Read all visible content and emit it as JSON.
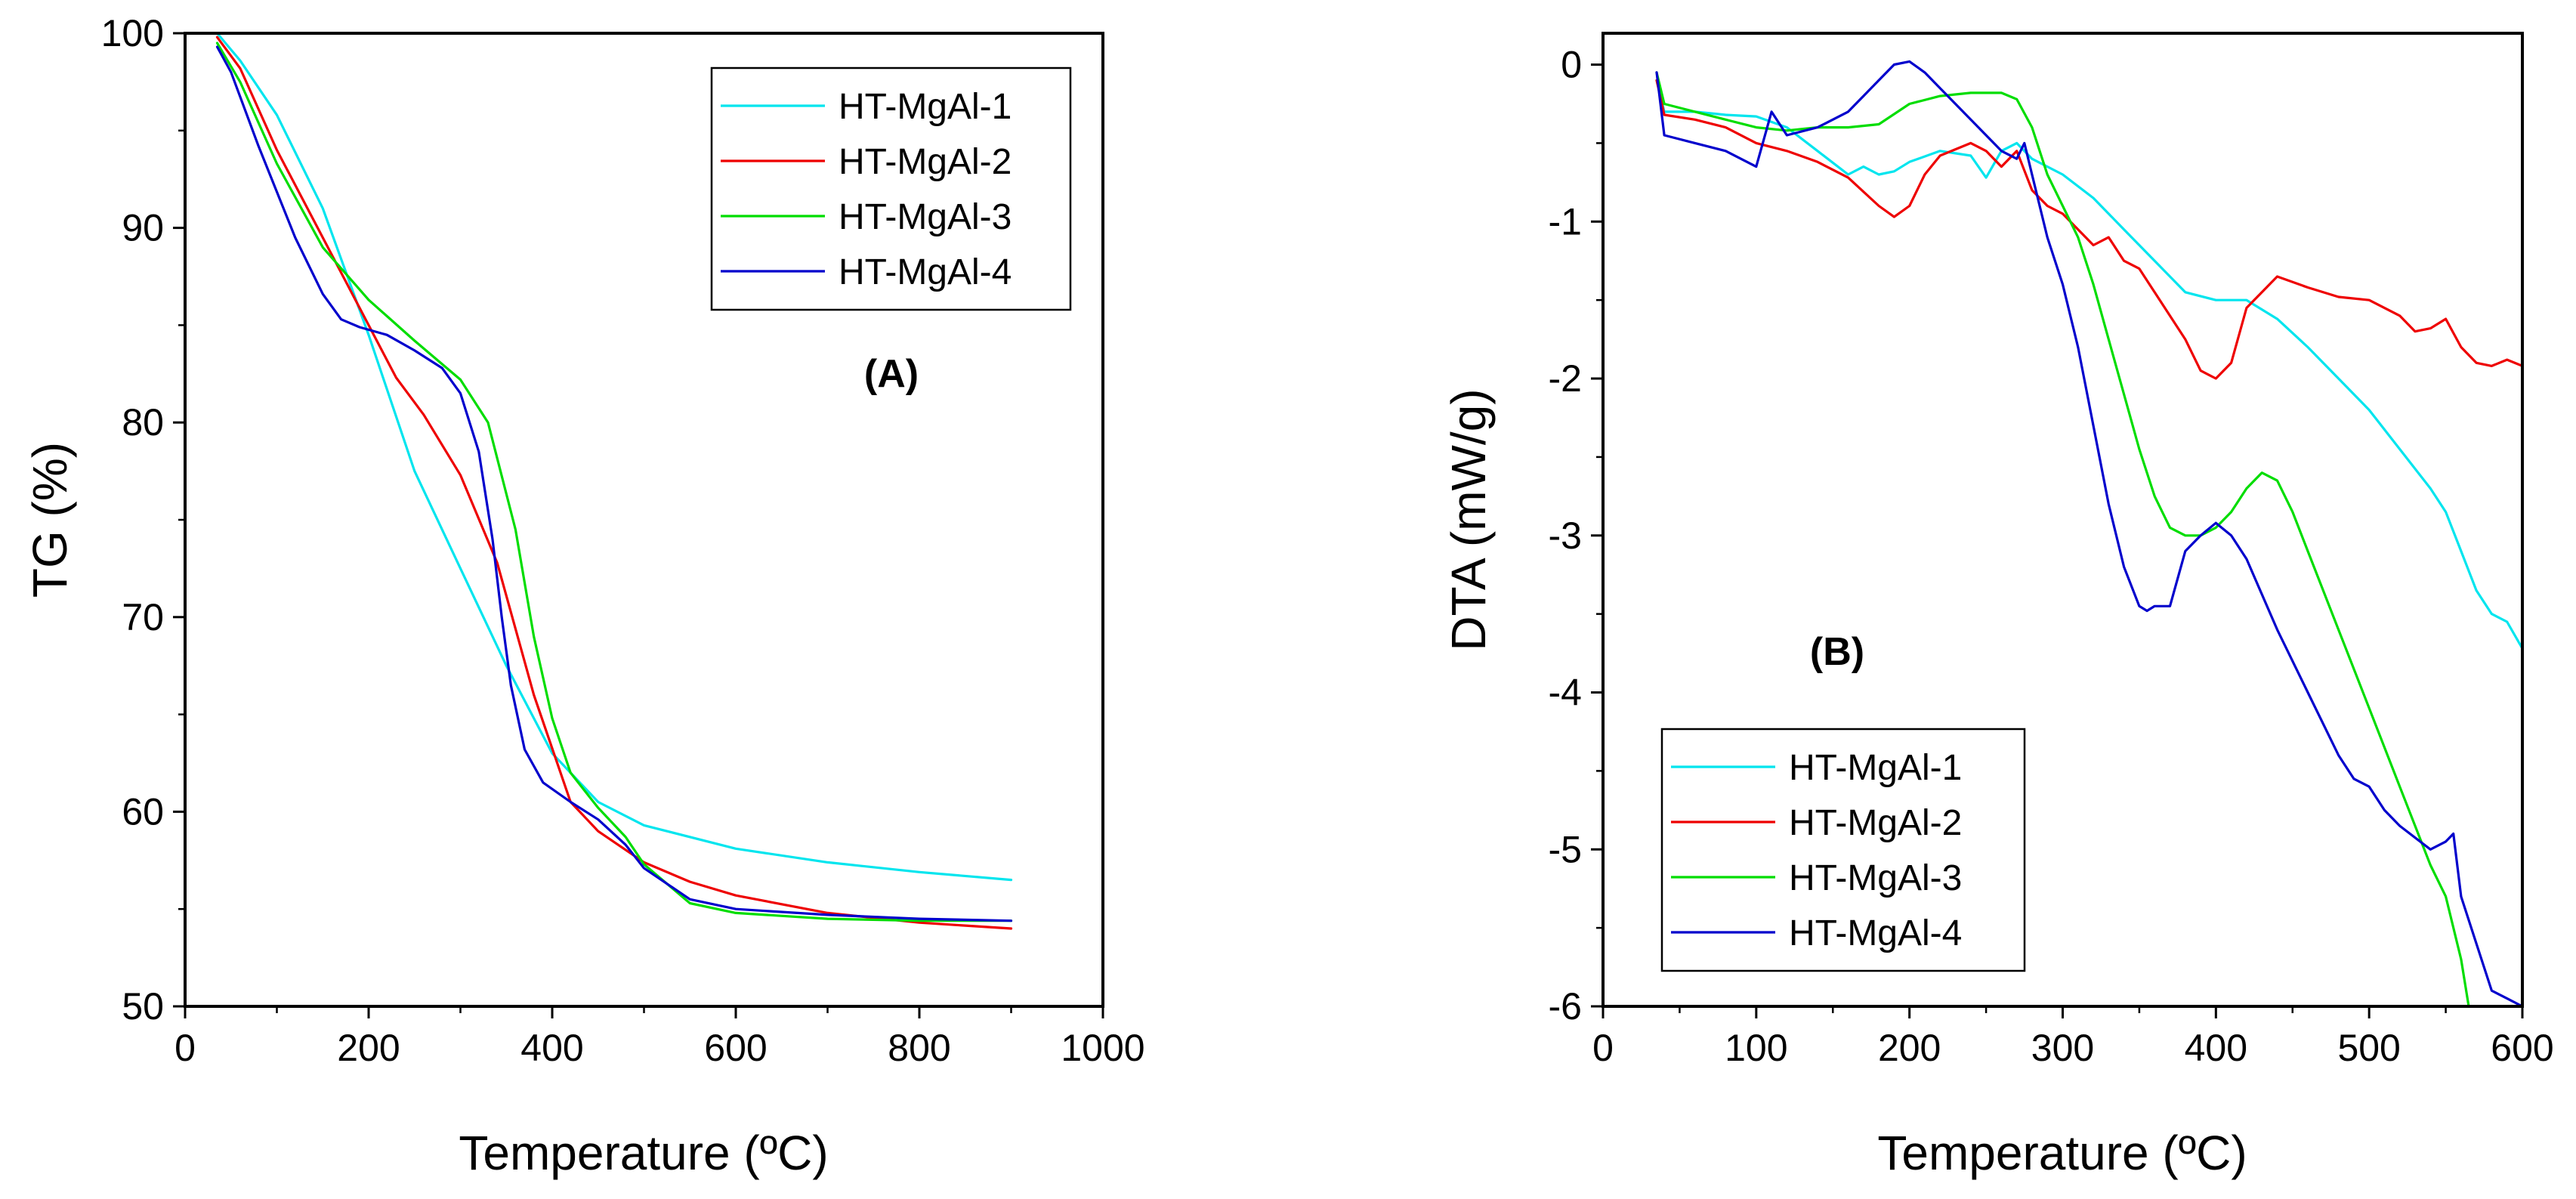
{
  "chart_data": [
    {
      "panel": "A",
      "type": "line",
      "annotation": "(A)",
      "xlabel": "Temperature (ºC)",
      "ylabel": "TG (%)",
      "xlim": [
        0,
        1000
      ],
      "ylim": [
        50,
        100
      ],
      "x_ticks": [
        "0",
        "200",
        "400",
        "600",
        "800",
        "1000"
      ],
      "y_ticks": [
        "50",
        "60",
        "70",
        "80",
        "90",
        "100"
      ],
      "grid": false,
      "legend_position": "top-right",
      "series": [
        {
          "name": "HT-MgAl-1",
          "color": "#00e5ee",
          "x": [
            35,
            60,
            100,
            150,
            200,
            250,
            300,
            350,
            400,
            450,
            500,
            600,
            700,
            800,
            900
          ],
          "y": [
            100,
            98.6,
            95.8,
            91,
            84.5,
            77.5,
            72.5,
            67.5,
            63,
            60.5,
            59.3,
            58.1,
            57.4,
            56.9,
            56.5
          ]
        },
        {
          "name": "HT-MgAl-2",
          "color": "#ee0000",
          "x": [
            35,
            60,
            100,
            150,
            200,
            230,
            260,
            300,
            340,
            380,
            420,
            450,
            500,
            550,
            600,
            700,
            800,
            900
          ],
          "y": [
            99.8,
            98.2,
            94,
            89.5,
            85,
            82.3,
            80.4,
            77.3,
            72.8,
            66,
            60.5,
            59,
            57.4,
            56.4,
            55.7,
            54.8,
            54.3,
            54
          ]
        },
        {
          "name": "HT-MgAl-3",
          "color": "#00dd00",
          "x": [
            35,
            60,
            100,
            150,
            200,
            250,
            300,
            330,
            360,
            380,
            400,
            420,
            450,
            480,
            500,
            550,
            600,
            700,
            800,
            900
          ],
          "y": [
            99.5,
            97.5,
            93.3,
            89,
            86.3,
            84.2,
            82.2,
            80,
            74.5,
            69,
            64.8,
            62,
            60.2,
            58.7,
            57.3,
            55.3,
            54.8,
            54.5,
            54.4,
            54.4
          ]
        },
        {
          "name": "HT-MgAl-4",
          "color": "#0000cc",
          "x": [
            35,
            50,
            80,
            120,
            150,
            170,
            190,
            220,
            250,
            280,
            300,
            320,
            335,
            345,
            355,
            370,
            390,
            420,
            450,
            480,
            500,
            550,
            600,
            700,
            800,
            900
          ],
          "y": [
            99.3,
            98,
            94.2,
            89.5,
            86.6,
            85.3,
            84.9,
            84.5,
            83.7,
            82.8,
            81.5,
            78.5,
            74,
            70,
            66.5,
            63.2,
            61.5,
            60.5,
            59.6,
            58.3,
            57.1,
            55.5,
            55,
            54.7,
            54.5,
            54.4
          ]
        }
      ]
    },
    {
      "panel": "B",
      "type": "line",
      "annotation": "(B)",
      "xlabel": "Temperature (ºC)",
      "ylabel": "DTA (mW/g)",
      "xlim": [
        0,
        600
      ],
      "ylim": [
        -6,
        0.2
      ],
      "x_ticks": [
        "0",
        "100",
        "200",
        "300",
        "400",
        "500",
        "600"
      ],
      "y_ticks": [
        "0",
        "-1",
        "-2",
        "-3",
        "-4",
        "-5",
        "-6"
      ],
      "grid": false,
      "legend_position": "bottom-left",
      "series": [
        {
          "name": "HT-MgAl-1",
          "color": "#00e5ee",
          "x": [
            35,
            40,
            60,
            80,
            100,
            120,
            140,
            160,
            170,
            180,
            190,
            200,
            220,
            240,
            250,
            260,
            270,
            280,
            300,
            320,
            340,
            360,
            380,
            400,
            420,
            440,
            460,
            480,
            500,
            520,
            540,
            550,
            560,
            570,
            580,
            590,
            600
          ],
          "y": [
            -0.1,
            -0.3,
            -0.3,
            -0.32,
            -0.33,
            -0.4,
            -0.55,
            -0.7,
            -0.65,
            -0.7,
            -0.68,
            -0.62,
            -0.55,
            -0.58,
            -0.72,
            -0.55,
            -0.5,
            -0.6,
            -0.7,
            -0.85,
            -1.05,
            -1.25,
            -1.45,
            -1.5,
            -1.5,
            -1.62,
            -1.8,
            -2.0,
            -2.2,
            -2.45,
            -2.7,
            -2.85,
            -3.1,
            -3.35,
            -3.5,
            -3.55,
            -3.72
          ]
        },
        {
          "name": "HT-MgAl-2",
          "color": "#ee0000",
          "x": [
            35,
            40,
            60,
            80,
            100,
            120,
            140,
            160,
            180,
            190,
            200,
            210,
            220,
            240,
            250,
            260,
            270,
            280,
            290,
            300,
            310,
            320,
            330,
            340,
            350,
            360,
            380,
            390,
            400,
            410,
            420,
            440,
            460,
            480,
            500,
            520,
            530,
            540,
            550,
            560,
            570,
            580,
            590,
            600
          ],
          "y": [
            -0.1,
            -0.32,
            -0.35,
            -0.4,
            -0.5,
            -0.55,
            -0.62,
            -0.72,
            -0.9,
            -0.97,
            -0.9,
            -0.7,
            -0.58,
            -0.5,
            -0.55,
            -0.65,
            -0.55,
            -0.8,
            -0.9,
            -0.95,
            -1.05,
            -1.15,
            -1.1,
            -1.25,
            -1.3,
            -1.45,
            -1.75,
            -1.95,
            -2.0,
            -1.9,
            -1.55,
            -1.35,
            -1.42,
            -1.48,
            -1.5,
            -1.6,
            -1.7,
            -1.68,
            -1.62,
            -1.8,
            -1.9,
            -1.92,
            -1.88,
            -1.92
          ]
        },
        {
          "name": "HT-MgAl-3",
          "color": "#00dd00",
          "x": [
            35,
            40,
            60,
            80,
            100,
            120,
            140,
            160,
            180,
            200,
            220,
            240,
            260,
            270,
            280,
            290,
            300,
            310,
            320,
            330,
            340,
            350,
            360,
            370,
            380,
            390,
            400,
            410,
            420,
            430,
            440,
            450,
            460,
            480,
            500,
            520,
            540,
            550,
            560,
            565
          ],
          "y": [
            -0.05,
            -0.25,
            -0.3,
            -0.35,
            -0.4,
            -0.42,
            -0.4,
            -0.4,
            -0.38,
            -0.25,
            -0.2,
            -0.18,
            -0.18,
            -0.22,
            -0.4,
            -0.7,
            -0.9,
            -1.1,
            -1.4,
            -1.75,
            -2.1,
            -2.45,
            -2.75,
            -2.95,
            -3.0,
            -3.0,
            -2.95,
            -2.85,
            -2.7,
            -2.6,
            -2.65,
            -2.85,
            -3.1,
            -3.6,
            -4.1,
            -4.6,
            -5.1,
            -5.3,
            -5.7,
            -6.0
          ]
        },
        {
          "name": "HT-MgAl-4",
          "color": "#0000cc",
          "x": [
            35,
            40,
            60,
            80,
            100,
            110,
            120,
            140,
            160,
            170,
            180,
            190,
            200,
            210,
            220,
            230,
            240,
            250,
            260,
            270,
            275,
            280,
            290,
            300,
            310,
            320,
            330,
            340,
            350,
            355,
            360,
            370,
            380,
            390,
            400,
            410,
            420,
            440,
            460,
            480,
            490,
            500,
            510,
            520,
            540,
            550,
            555,
            560,
            570,
            580,
            590,
            600
          ],
          "y": [
            -0.05,
            -0.45,
            -0.5,
            -0.55,
            -0.65,
            -0.3,
            -0.45,
            -0.4,
            -0.3,
            -0.2,
            -0.1,
            0.0,
            0.02,
            -0.05,
            -0.15,
            -0.25,
            -0.35,
            -0.45,
            -0.55,
            -0.6,
            -0.5,
            -0.7,
            -1.1,
            -1.4,
            -1.8,
            -2.3,
            -2.8,
            -3.2,
            -3.45,
            -3.48,
            -3.45,
            -3.45,
            -3.1,
            -3.0,
            -2.92,
            -3.0,
            -3.15,
            -3.6,
            -4.0,
            -4.4,
            -4.55,
            -4.6,
            -4.75,
            -4.85,
            -5.0,
            -4.95,
            -4.9,
            -5.3,
            -5.6,
            -5.9,
            -5.95,
            -6.0
          ]
        }
      ]
    }
  ]
}
